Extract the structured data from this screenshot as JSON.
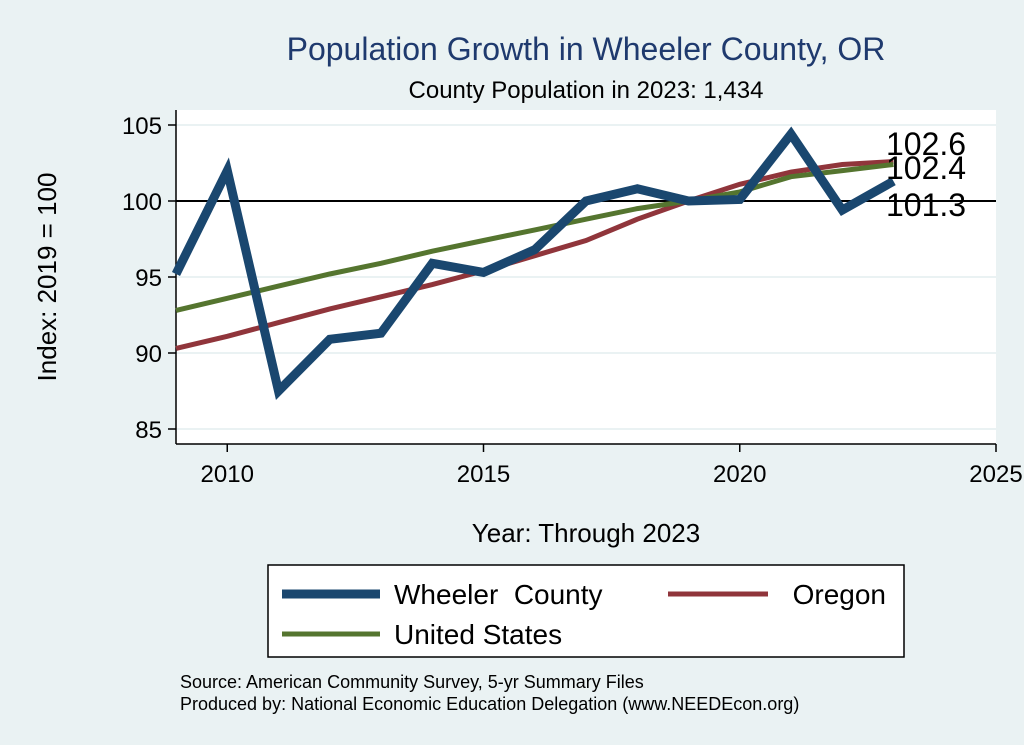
{
  "chart_data": {
    "type": "line",
    "title": "Population Growth in Wheeler County, OR",
    "subtitle": "County Population in 2023: 1,434",
    "xlabel": "Year: Through 2023",
    "ylabel": "Index: 2019 = 100",
    "xlim": [
      2009,
      2025
    ],
    "ylim": [
      84,
      106
    ],
    "xticks": [
      2010,
      2015,
      2020,
      2025
    ],
    "yticks": [
      85,
      90,
      95,
      100,
      105
    ],
    "reference_line": 100,
    "x": [
      2009,
      2010,
      2011,
      2012,
      2013,
      2014,
      2015,
      2016,
      2017,
      2018,
      2019,
      2020,
      2021,
      2022,
      2023
    ],
    "series": [
      {
        "name": "Wheeler  County",
        "color": "#1a476f",
        "values": [
          95.2,
          102.0,
          87.5,
          90.9,
          91.3,
          95.9,
          95.3,
          96.8,
          100.0,
          100.8,
          100.0,
          100.1,
          104.4,
          99.4,
          101.3
        ],
        "end_label": "101.3"
      },
      {
        "name": "Oregon",
        "color": "#90353b",
        "values": [
          90.3,
          91.1,
          92.0,
          92.9,
          93.7,
          94.5,
          95.4,
          96.4,
          97.4,
          98.8,
          100.0,
          101.1,
          101.9,
          102.4,
          102.6
        ],
        "end_label": "102.6"
      },
      {
        "name": "United States",
        "color": "#55752f",
        "values": [
          92.8,
          93.6,
          94.4,
          95.2,
          95.9,
          96.7,
          97.4,
          98.1,
          98.8,
          99.5,
          100.0,
          100.6,
          101.6,
          102.0,
          102.4
        ],
        "end_label": "102.4"
      }
    ]
  },
  "notes": {
    "source": "Source: American Community Survey, 5-yr Summary Files",
    "produced_by": "Produced by: National Economic Education Delegation (www.NEEDEcon.org)"
  }
}
